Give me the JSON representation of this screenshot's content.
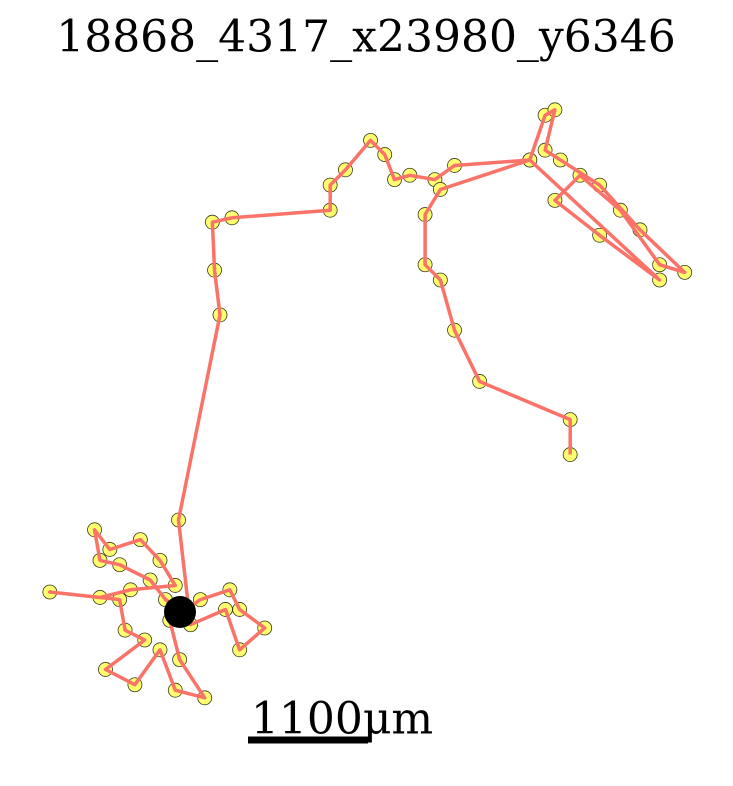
{
  "chart_data": {
    "type": "trajectory",
    "title": "18868_4317_x23980_y6346",
    "x": [
      1280,
      1150,
      1010,
      730,
      550,
      500,
      640,
      920,
      1100,
      1240,
      830,
      550,
      90,
      730,
      780,
      960,
      600,
      870,
      1100,
      1240,
      1510,
      1280,
      1190,
      1470,
      1740,
      1830,
      2060,
      1830,
      1700,
      1380,
      1270,
      1650,
      1600,
      1580,
      1760,
      2660,
      2660,
      2800,
      3030,
      3160,
      3250,
      3390,
      3620,
      3800,
      4490,
      4630,
      4720,
      4630,
      4770,
      5130,
      5500,
      5910,
      5680,
      5320,
      4950,
      4720,
      5130,
      5680,
      4490,
      3670,
      3530,
      3530,
      3670,
      3800,
      4030,
      4860,
      4860
    ],
    "values": [
      830,
      920,
      1100,
      1240,
      1280,
      1560,
      1380,
      1470,
      1280,
      1050,
      1010,
      940,
      990,
      920,
      640,
      550,
      280,
      140,
      460,
      90,
      20,
      370,
      730,
      920,
      1010,
      830,
      660,
      460,
      830,
      690,
      1650,
      3530,
      3940,
      4380,
      4420,
      4490,
      4720,
      4860,
      5130,
      5000,
      4770,
      4810,
      4770,
      4900,
      4950,
      5360,
      5410,
      5040,
      4950,
      4720,
      4310,
      3920,
      3990,
      4490,
      4810,
      4580,
      4260,
      3850,
      4950,
      4680,
      4450,
      3990,
      3850,
      3390,
      2920,
      2570,
      2250
    ],
    "xlim": [
      0,
      6050
    ],
    "ylim": [
      0,
      5500
    ],
    "color": "#fa7268",
    "marker_color": "#ffff70",
    "marker_edge_color": "#3a3a1a",
    "scale_bar": {
      "value": 1100,
      "label": "1100μm"
    }
  }
}
